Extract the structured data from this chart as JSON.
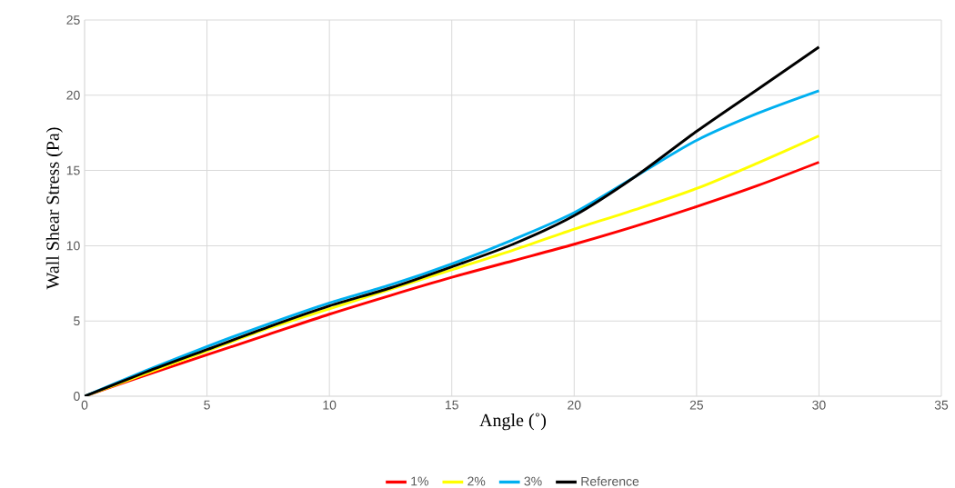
{
  "chart_data": {
    "type": "line",
    "xlabel": "Angle (˚)",
    "ylabel": "Wall Shear Stress (Pa)",
    "x": [
      0,
      2.5,
      5,
      7.5,
      10,
      12.5,
      15,
      17.5,
      20,
      22.5,
      25,
      27.5,
      30
    ],
    "series": [
      {
        "name": "1%",
        "color": "#ff0000",
        "values": [
          0,
          1.4,
          2.75,
          4.1,
          5.45,
          6.7,
          7.9,
          9.0,
          10.1,
          11.3,
          12.6,
          14.0,
          15.55
        ]
      },
      {
        "name": "2%",
        "color": "#ffff00",
        "values": [
          0,
          1.5,
          3.0,
          4.5,
          5.8,
          7.1,
          8.4,
          9.7,
          11.1,
          12.4,
          13.8,
          15.5,
          17.3
        ]
      },
      {
        "name": "3%",
        "color": "#00b0f0",
        "values": [
          0,
          1.7,
          3.3,
          4.8,
          6.2,
          7.4,
          8.8,
          10.4,
          12.2,
          14.6,
          17.0,
          18.8,
          20.3
        ]
      },
      {
        "name": "Reference",
        "color": "#000000",
        "values": [
          0,
          1.6,
          3.1,
          4.6,
          6.0,
          7.2,
          8.6,
          10.1,
          12.0,
          14.6,
          17.6,
          20.4,
          23.2
        ]
      }
    ],
    "xlim": [
      0,
      35
    ],
    "xticks": [
      0,
      5,
      10,
      15,
      20,
      25,
      30,
      35
    ],
    "ylim": [
      0,
      25
    ],
    "yticks": [
      0,
      5,
      10,
      15,
      20,
      25
    ],
    "grid": true,
    "legend": "bottom",
    "marker": "none",
    "line_style": "solid"
  }
}
